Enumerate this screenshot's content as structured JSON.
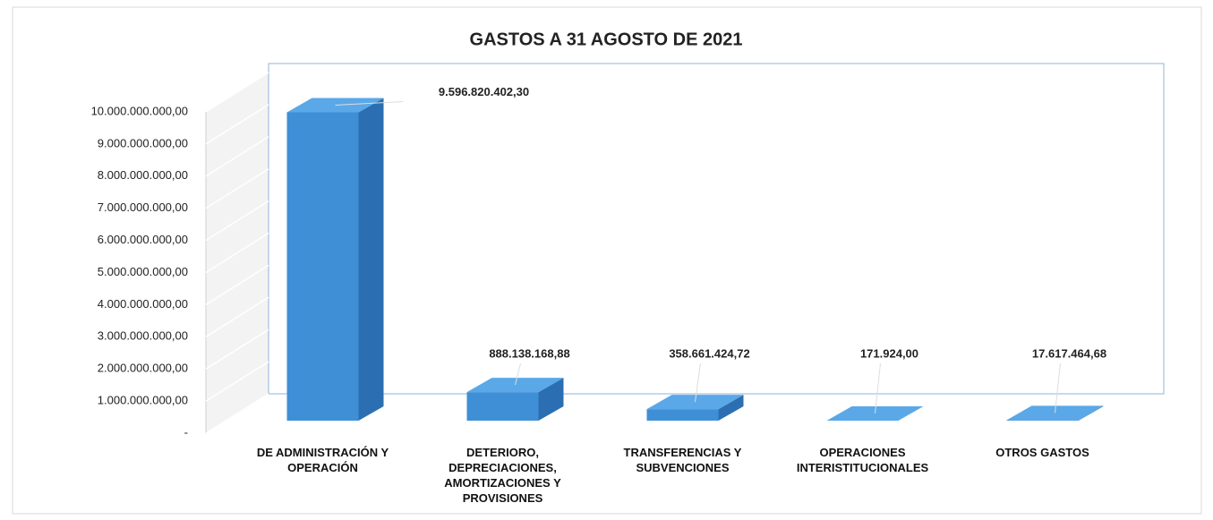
{
  "chart_data": {
    "type": "bar3d",
    "title": "GASTOS A 31 AGOSTO DE 2021",
    "categories": [
      "DE ADMINISTRACIÓN Y OPERACIÓN",
      "DETERIORO, DEPRECIACIONES, AMORTIZACIONES Y PROVISIONES",
      "TRANSFERENCIAS Y SUBVENCIONES",
      "OPERACIONES INTERISTITUCIONALES",
      "OTROS GASTOS"
    ],
    "values": [
      9596820402.3,
      888138168.88,
      358661424.72,
      171924,
      17617464.68
    ],
    "value_labels": [
      "9.596.820.402,30",
      "888.138.168,88",
      "358.661.424,72",
      "171.924,00",
      "17.617.464,68"
    ],
    "color": "#3f8fd6",
    "ylim": [
      0,
      10000000000
    ],
    "yticks": [
      {
        "value": 0,
        "label": "-"
      },
      {
        "value": 1000000000,
        "label": "1.000.000.000,00"
      },
      {
        "value": 2000000000,
        "label": "2.000.000.000,00"
      },
      {
        "value": 3000000000,
        "label": "3.000.000.000,00"
      },
      {
        "value": 4000000000,
        "label": "4.000.000.000,00"
      },
      {
        "value": 5000000000,
        "label": "5.000.000.000,00"
      },
      {
        "value": 6000000000,
        "label": "6.000.000.000,00"
      },
      {
        "value": 7000000000,
        "label": "7.000.000.000,00"
      },
      {
        "value": 8000000000,
        "label": "8.000.000.000,00"
      },
      {
        "value": 9000000000,
        "label": "9.000.000.000,00"
      },
      {
        "value": 10000000000,
        "label": "10.000.000.000,00"
      }
    ]
  }
}
